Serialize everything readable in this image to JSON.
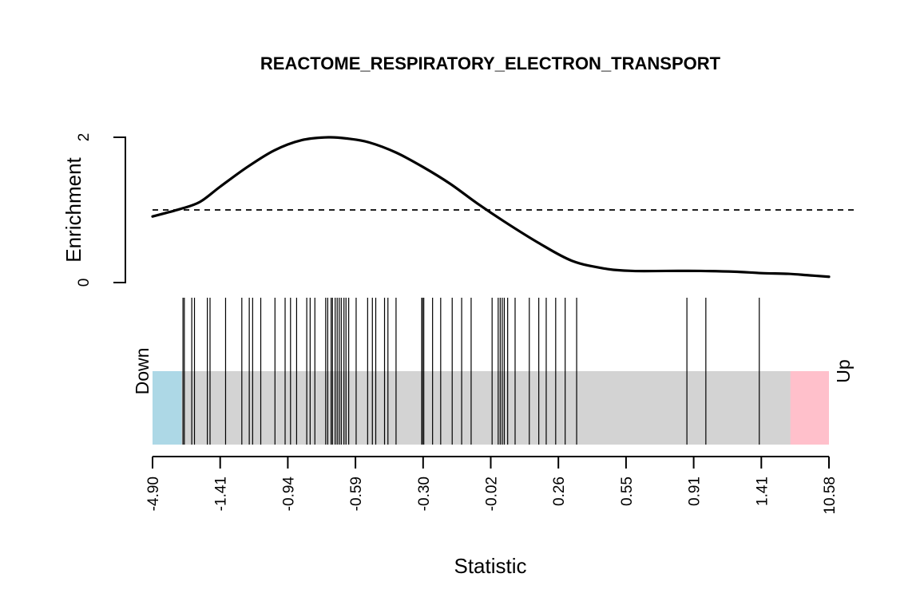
{
  "chart_data": {
    "type": "barcode-enrichment",
    "title": "REACTOME_RESPIRATORY_ELECTRON_TRANSPORT",
    "xlabel": "Statistic",
    "ylabel": "Enrichment",
    "yticks": [
      0,
      2
    ],
    "ylim": [
      0,
      2
    ],
    "reference_line": 1,
    "x_tick_labels": [
      "-4.90",
      "-1.41",
      "-0.94",
      "-0.59",
      "-0.30",
      "-0.02",
      "0.26",
      "0.55",
      "0.91",
      "1.41",
      "10.58"
    ],
    "down_label": "Down",
    "up_label": "Up",
    "colors": {
      "down_region": "#add8e6",
      "up_region": "#ffc0cb",
      "middle_region": "#d3d3d3",
      "line": "#000000"
    },
    "region_quantiles": {
      "down_end": 0.043,
      "up_start": 0.943
    },
    "enrichment_curve": {
      "x_quantile": [
        0.0,
        0.04,
        0.07,
        0.1,
        0.14,
        0.18,
        0.22,
        0.26,
        0.29,
        0.32,
        0.36,
        0.4,
        0.44,
        0.48,
        0.52,
        0.57,
        0.62,
        0.67,
        0.71,
        0.76,
        0.81,
        0.86,
        0.9,
        0.94,
        0.97,
        1.0
      ],
      "y": [
        0.91,
        1.01,
        1.11,
        1.32,
        1.59,
        1.82,
        1.96,
        2.0,
        1.98,
        1.93,
        1.79,
        1.59,
        1.36,
        1.09,
        0.84,
        0.55,
        0.3,
        0.19,
        0.16,
        0.16,
        0.16,
        0.15,
        0.13,
        0.12,
        0.1,
        0.08
      ]
    },
    "gene_positions_quantile": [
      0.045,
      0.047,
      0.058,
      0.062,
      0.081,
      0.085,
      0.108,
      0.132,
      0.143,
      0.148,
      0.16,
      0.181,
      0.196,
      0.204,
      0.213,
      0.228,
      0.233,
      0.24,
      0.256,
      0.259,
      0.264,
      0.266,
      0.27,
      0.273,
      0.276,
      0.279,
      0.283,
      0.286,
      0.29,
      0.301,
      0.318,
      0.325,
      0.33,
      0.343,
      0.348,
      0.36,
      0.398,
      0.399,
      0.401,
      0.414,
      0.426,
      0.443,
      0.457,
      0.471,
      0.502,
      0.511,
      0.514,
      0.517,
      0.52,
      0.525,
      0.536,
      0.557,
      0.571,
      0.582,
      0.596,
      0.61,
      0.627,
      0.79,
      0.818,
      0.897
    ]
  }
}
